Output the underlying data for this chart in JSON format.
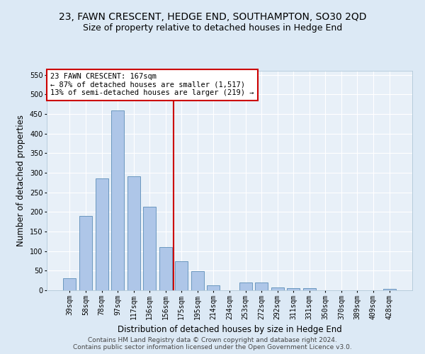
{
  "title": "23, FAWN CRESCENT, HEDGE END, SOUTHAMPTON, SO30 2QD",
  "subtitle": "Size of property relative to detached houses in Hedge End",
  "xlabel": "Distribution of detached houses by size in Hedge End",
  "ylabel": "Number of detached properties",
  "categories": [
    "39sqm",
    "58sqm",
    "78sqm",
    "97sqm",
    "117sqm",
    "136sqm",
    "156sqm",
    "175sqm",
    "195sqm",
    "214sqm",
    "234sqm",
    "253sqm",
    "272sqm",
    "292sqm",
    "311sqm",
    "331sqm",
    "350sqm",
    "370sqm",
    "389sqm",
    "409sqm",
    "428sqm"
  ],
  "values": [
    30,
    190,
    285,
    458,
    290,
    213,
    110,
    74,
    48,
    13,
    0,
    20,
    20,
    8,
    5,
    5,
    0,
    0,
    0,
    0,
    4
  ],
  "bar_color": "#aec6e8",
  "bar_edge_color": "#5b8db8",
  "vline_color": "#cc0000",
  "annotation_text": "23 FAWN CRESCENT: 167sqm\n← 87% of detached houses are smaller (1,517)\n13% of semi-detached houses are larger (219) →",
  "annotation_box_color": "#ffffff",
  "annotation_box_edge_color": "#cc0000",
  "ylim": [
    0,
    560
  ],
  "yticks": [
    0,
    50,
    100,
    150,
    200,
    250,
    300,
    350,
    400,
    450,
    500,
    550
  ],
  "bg_color": "#dce9f5",
  "plot_bg_color": "#e8f0f8",
  "footer_line1": "Contains HM Land Registry data © Crown copyright and database right 2024.",
  "footer_line2": "Contains public sector information licensed under the Open Government Licence v3.0.",
  "title_fontsize": 10,
  "subtitle_fontsize": 9,
  "axis_label_fontsize": 8.5,
  "tick_fontsize": 7,
  "footer_fontsize": 6.5,
  "annotation_fontsize": 7.5
}
